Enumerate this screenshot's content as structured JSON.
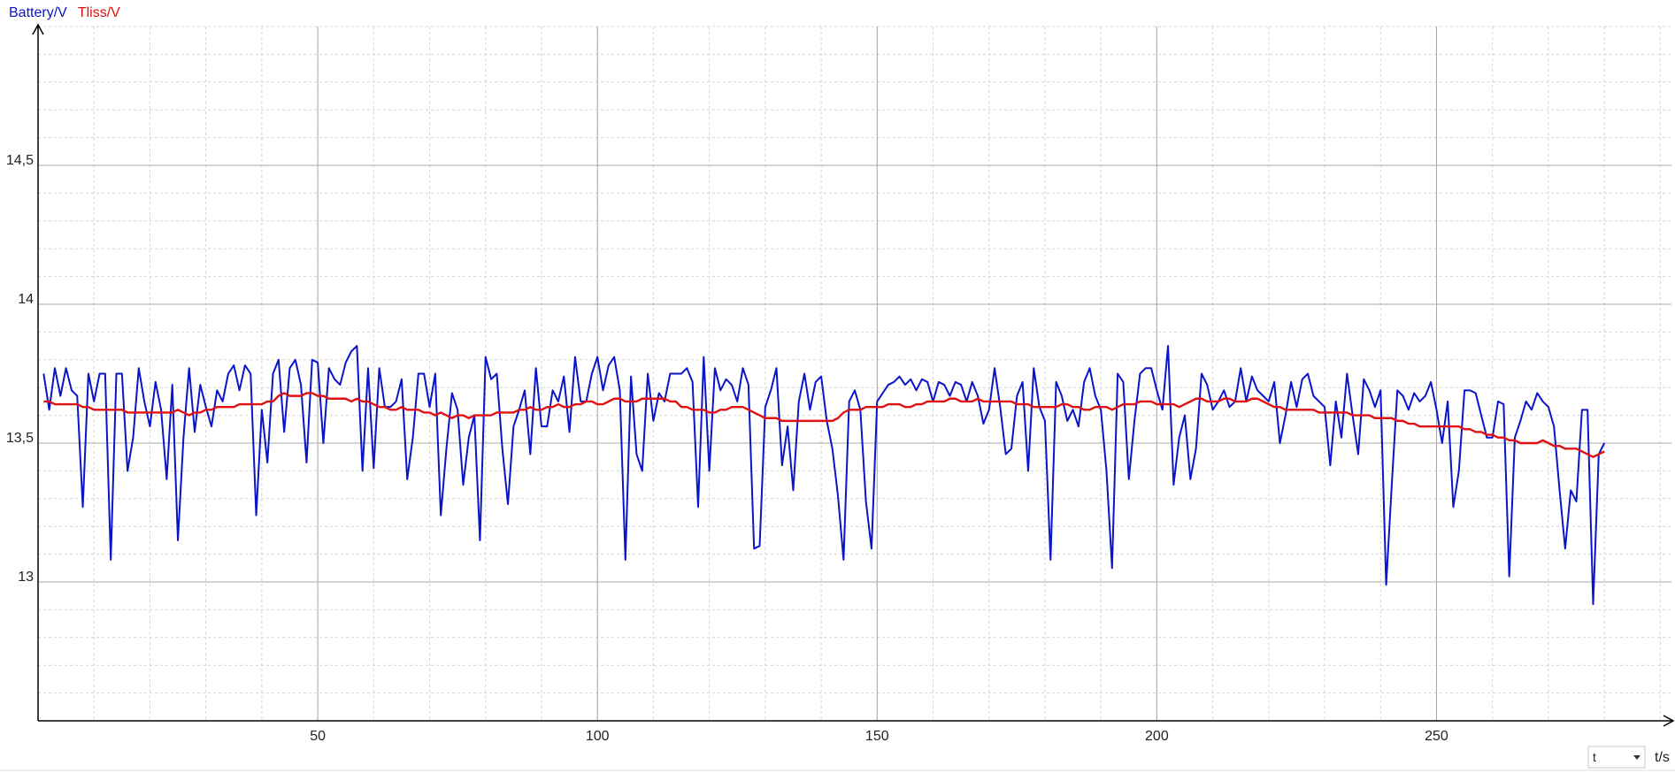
{
  "chart_data": {
    "type": "line",
    "x_label": "t/s",
    "x": [
      1,
      2,
      3,
      4,
      5,
      6,
      7,
      8,
      9,
      10,
      11,
      12,
      13,
      14,
      15,
      16,
      17,
      18,
      19,
      20,
      21,
      22,
      23,
      24,
      25,
      26,
      27,
      28,
      29,
      30,
      31,
      32,
      33,
      34,
      35,
      36,
      37,
      38,
      39,
      40,
      41,
      42,
      43,
      44,
      45,
      46,
      47,
      48,
      49,
      50,
      51,
      52,
      53,
      54,
      55,
      56,
      57,
      58,
      59,
      60,
      61,
      62,
      63,
      64,
      65,
      66,
      67,
      68,
      69,
      70,
      71,
      72,
      73,
      74,
      75,
      76,
      77,
      78,
      79,
      80,
      81,
      82,
      83,
      84,
      85,
      86,
      87,
      88,
      89,
      90,
      91,
      92,
      93,
      94,
      95,
      96,
      97,
      98,
      99,
      100,
      101,
      102,
      103,
      104,
      105,
      106,
      107,
      108,
      109,
      110,
      111,
      112,
      113,
      114,
      115,
      116,
      117,
      118,
      119,
      120,
      121,
      122,
      123,
      124,
      125,
      126,
      127,
      128,
      129,
      130,
      131,
      132,
      133,
      134,
      135,
      136,
      137,
      138,
      139,
      140,
      141,
      142,
      143,
      144,
      145,
      146,
      147,
      148,
      149,
      150,
      151,
      152,
      153,
      154,
      155,
      156,
      157,
      158,
      159,
      160,
      161,
      162,
      163,
      164,
      165,
      166,
      167,
      168,
      169,
      170,
      171,
      172,
      173,
      174,
      175,
      176,
      177,
      178,
      179,
      180,
      181,
      182,
      183,
      184,
      185,
      186,
      187,
      188,
      189,
      190,
      191,
      192,
      193,
      194,
      195,
      196,
      197,
      198,
      199,
      200,
      201,
      202,
      203,
      204,
      205,
      206,
      207,
      208,
      209,
      210,
      211,
      212,
      213,
      214,
      215,
      216,
      217,
      218,
      219,
      220,
      221,
      222,
      223,
      224,
      225,
      226,
      227,
      228,
      229,
      230,
      231,
      232,
      233,
      234,
      235,
      236,
      237,
      238,
      239,
      240,
      241,
      242,
      243,
      244,
      245,
      246,
      247,
      248,
      249,
      250,
      251,
      252,
      253,
      254,
      255,
      256,
      257,
      258,
      259,
      260,
      261,
      262,
      263,
      264,
      265,
      266,
      267,
      268,
      269,
      270,
      271,
      272,
      273,
      274,
      275,
      276,
      277,
      278,
      279,
      280
    ],
    "series": [
      {
        "name": "Battery/V",
        "color": "#0a14c8",
        "values": [
          13.75,
          13.62,
          13.77,
          13.67,
          13.77,
          13.69,
          13.67,
          13.27,
          13.75,
          13.65,
          13.75,
          13.75,
          13.08,
          13.75,
          13.75,
          13.4,
          13.52,
          13.77,
          13.65,
          13.56,
          13.72,
          13.62,
          13.37,
          13.71,
          13.15,
          13.52,
          13.77,
          13.54,
          13.71,
          13.63,
          13.56,
          13.69,
          13.65,
          13.75,
          13.78,
          13.69,
          13.78,
          13.75,
          13.24,
          13.62,
          13.43,
          13.75,
          13.8,
          13.54,
          13.77,
          13.8,
          13.71,
          13.43,
          13.8,
          13.79,
          13.5,
          13.77,
          13.73,
          13.71,
          13.79,
          13.83,
          13.85,
          13.4,
          13.77,
          13.41,
          13.77,
          13.63,
          13.63,
          13.65,
          13.73,
          13.37,
          13.52,
          13.75,
          13.75,
          13.63,
          13.75,
          13.24,
          13.48,
          13.68,
          13.62,
          13.35,
          13.52,
          13.6,
          13.15,
          13.81,
          13.73,
          13.75,
          13.48,
          13.28,
          13.56,
          13.62,
          13.69,
          13.46,
          13.77,
          13.56,
          13.56,
          13.69,
          13.65,
          13.74,
          13.54,
          13.81,
          13.65,
          13.65,
          13.75,
          13.81,
          13.69,
          13.78,
          13.81,
          13.69,
          13.08,
          13.74,
          13.46,
          13.4,
          13.75,
          13.58,
          13.68,
          13.65,
          13.75,
          13.75,
          13.75,
          13.77,
          13.72,
          13.27,
          13.81,
          13.4,
          13.77,
          13.69,
          13.73,
          13.71,
          13.65,
          13.77,
          13.71,
          13.12,
          13.13,
          13.63,
          13.69,
          13.77,
          13.42,
          13.56,
          13.33,
          13.65,
          13.75,
          13.62,
          13.72,
          13.74,
          13.58,
          13.48,
          13.31,
          13.08,
          13.65,
          13.69,
          13.62,
          13.29,
          13.12,
          13.65,
          13.68,
          13.71,
          13.72,
          13.74,
          13.71,
          13.73,
          13.69,
          13.73,
          13.72,
          13.65,
          13.72,
          13.71,
          13.67,
          13.72,
          13.71,
          13.65,
          13.72,
          13.67,
          13.57,
          13.62,
          13.77,
          13.63,
          13.46,
          13.48,
          13.67,
          13.72,
          13.4,
          13.77,
          13.63,
          13.58,
          13.08,
          13.72,
          13.67,
          13.58,
          13.62,
          13.56,
          13.72,
          13.77,
          13.67,
          13.62,
          13.4,
          13.05,
          13.75,
          13.72,
          13.37,
          13.58,
          13.75,
          13.77,
          13.77,
          13.69,
          13.62,
          13.85,
          13.35,
          13.52,
          13.6,
          13.37,
          13.48,
          13.75,
          13.71,
          13.62,
          13.65,
          13.69,
          13.63,
          13.65,
          13.77,
          13.65,
          13.74,
          13.69,
          13.67,
          13.65,
          13.72,
          13.5,
          13.6,
          13.72,
          13.63,
          13.73,
          13.75,
          13.67,
          13.65,
          13.63,
          13.42,
          13.65,
          13.52,
          13.75,
          13.6,
          13.46,
          13.73,
          13.69,
          13.63,
          13.69,
          12.99,
          13.35,
          13.69,
          13.67,
          13.62,
          13.68,
          13.65,
          13.67,
          13.72,
          13.62,
          13.5,
          13.65,
          13.27,
          13.4,
          13.69,
          13.69,
          13.68,
          13.6,
          13.52,
          13.52,
          13.65,
          13.64,
          13.02,
          13.52,
          13.58,
          13.65,
          13.62,
          13.68,
          13.65,
          13.63,
          13.56,
          13.33,
          13.12,
          13.33,
          13.29,
          13.62,
          13.62,
          12.92,
          13.46,
          13.5
        ]
      },
      {
        "name": "Tliss/V",
        "color": "#e01010",
        "values": [
          13.65,
          13.65,
          13.64,
          13.64,
          13.64,
          13.64,
          13.64,
          13.63,
          13.63,
          13.62,
          13.62,
          13.62,
          13.62,
          13.62,
          13.62,
          13.61,
          13.61,
          13.61,
          13.61,
          13.61,
          13.61,
          13.61,
          13.61,
          13.61,
          13.62,
          13.61,
          13.6,
          13.61,
          13.61,
          13.62,
          13.62,
          13.63,
          13.63,
          13.63,
          13.63,
          13.64,
          13.64,
          13.64,
          13.64,
          13.64,
          13.65,
          13.65,
          13.67,
          13.68,
          13.67,
          13.67,
          13.67,
          13.68,
          13.68,
          13.67,
          13.67,
          13.66,
          13.66,
          13.66,
          13.66,
          13.65,
          13.66,
          13.65,
          13.65,
          13.64,
          13.63,
          13.63,
          13.62,
          13.62,
          13.63,
          13.62,
          13.62,
          13.62,
          13.61,
          13.61,
          13.6,
          13.61,
          13.6,
          13.59,
          13.6,
          13.6,
          13.59,
          13.6,
          13.6,
          13.6,
          13.6,
          13.61,
          13.61,
          13.61,
          13.61,
          13.62,
          13.62,
          13.63,
          13.62,
          13.62,
          13.63,
          13.63,
          13.64,
          13.63,
          13.63,
          13.64,
          13.64,
          13.65,
          13.65,
          13.64,
          13.64,
          13.65,
          13.66,
          13.66,
          13.65,
          13.65,
          13.65,
          13.66,
          13.66,
          13.66,
          13.66,
          13.66,
          13.65,
          13.65,
          13.63,
          13.63,
          13.62,
          13.62,
          13.62,
          13.61,
          13.61,
          13.62,
          13.62,
          13.63,
          13.63,
          13.63,
          13.62,
          13.61,
          13.6,
          13.59,
          13.59,
          13.59,
          13.58,
          13.58,
          13.58,
          13.58,
          13.58,
          13.58,
          13.58,
          13.58,
          13.58,
          13.58,
          13.59,
          13.61,
          13.62,
          13.62,
          13.62,
          13.63,
          13.63,
          13.63,
          13.63,
          13.64,
          13.64,
          13.64,
          13.63,
          13.63,
          13.64,
          13.64,
          13.65,
          13.65,
          13.65,
          13.65,
          13.66,
          13.66,
          13.65,
          13.65,
          13.65,
          13.66,
          13.65,
          13.65,
          13.65,
          13.65,
          13.65,
          13.65,
          13.64,
          13.64,
          13.64,
          13.63,
          13.63,
          13.63,
          13.63,
          13.63,
          13.64,
          13.64,
          13.63,
          13.63,
          13.62,
          13.62,
          13.63,
          13.63,
          13.63,
          13.62,
          13.63,
          13.64,
          13.64,
          13.64,
          13.65,
          13.65,
          13.65,
          13.64,
          13.64,
          13.64,
          13.64,
          13.63,
          13.64,
          13.65,
          13.66,
          13.66,
          13.65,
          13.65,
          13.65,
          13.66,
          13.66,
          13.65,
          13.65,
          13.65,
          13.66,
          13.66,
          13.65,
          13.64,
          13.63,
          13.63,
          13.62,
          13.62,
          13.62,
          13.62,
          13.62,
          13.62,
          13.61,
          13.61,
          13.61,
          13.61,
          13.61,
          13.61,
          13.6,
          13.6,
          13.6,
          13.6,
          13.59,
          13.59,
          13.59,
          13.59,
          13.58,
          13.58,
          13.57,
          13.57,
          13.56,
          13.56,
          13.56,
          13.56,
          13.56,
          13.56,
          13.56,
          13.56,
          13.55,
          13.55,
          13.54,
          13.54,
          13.53,
          13.53,
          13.52,
          13.52,
          13.51,
          13.51,
          13.5,
          13.5,
          13.5,
          13.5,
          13.51,
          13.5,
          13.49,
          13.49,
          13.48,
          13.48,
          13.48,
          13.47,
          13.46,
          13.45,
          13.46,
          13.47
        ]
      }
    ],
    "xlim": [
      0,
      292
    ],
    "xticks": [
      50,
      100,
      150,
      200,
      250
    ],
    "ylim": [
      12.5,
      15
    ],
    "yticks": [
      13,
      {
        "value": 13.5,
        "label": "13,5"
      },
      14,
      {
        "value": 14.5,
        "label": "14,5"
      }
    ],
    "grid": true,
    "minor_grid": true
  },
  "x_selector": "t"
}
